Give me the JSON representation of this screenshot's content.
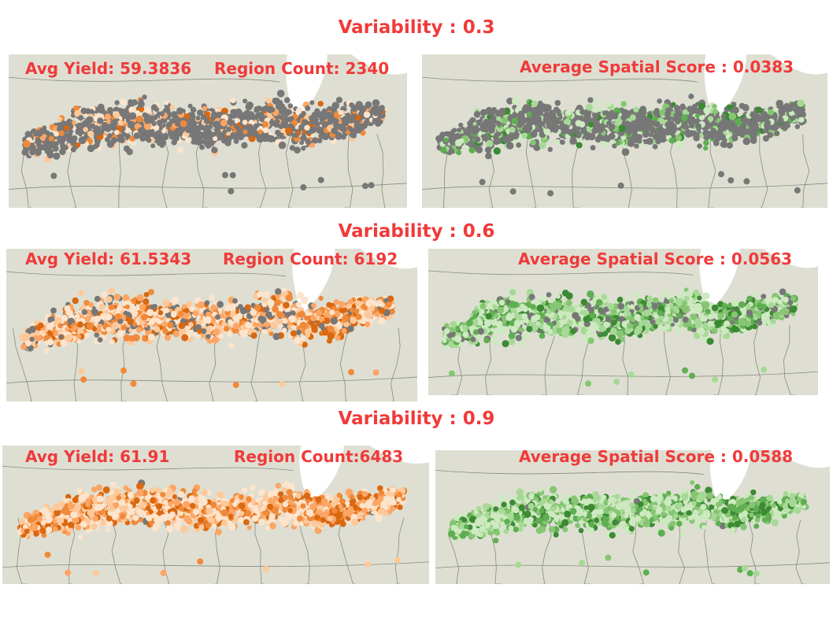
{
  "rows": [
    {
      "title": "Variability : 0.3",
      "avg_yield": "Avg Yield: 59.3836",
      "region_count": "Region Count: 2340",
      "spatial_score": "Average Spatial Score : 0.0383",
      "colored_fraction": 0.3
    },
    {
      "title": "Variability : 0.6",
      "avg_yield": "Avg Yield: 61.5343",
      "region_count": "Region Count: 6192",
      "spatial_score": "Average Spatial Score : 0.0563",
      "colored_fraction": 0.87
    },
    {
      "title": "Variability : 0.9",
      "avg_yield": "Avg Yield: 61.91",
      "region_count": "Region Count:6483",
      "spatial_score": "Average Spatial Score : 0.0588",
      "colored_fraction": 0.99
    }
  ],
  "colors": {
    "background": "#dedfd2",
    "water": "#ffffff",
    "unselected": "#777777",
    "title": "#f03a3a",
    "yield_scale": [
      "#fde4cc",
      "#fdc99a",
      "#fca564",
      "#f08a3a",
      "#d96810"
    ],
    "spatial_scale": [
      "#cde9bf",
      "#a7d996",
      "#86c673",
      "#5fae52",
      "#3c8a34"
    ]
  }
}
